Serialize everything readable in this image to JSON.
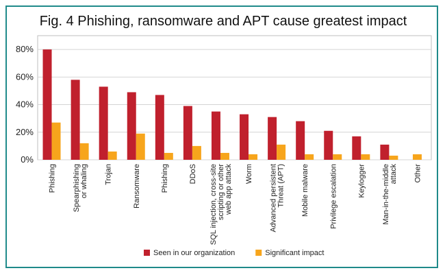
{
  "chart_data": {
    "type": "bar",
    "title": "Fig. 4  Phishing, ransomware and APT cause greatest impact",
    "xlabel": "",
    "ylabel": "",
    "ylim": [
      0,
      90
    ],
    "yticks": [
      0,
      20,
      40,
      60,
      80
    ],
    "ytick_labels": [
      "0%",
      "20%",
      "40%",
      "60%",
      "80%"
    ],
    "grid": true,
    "legend_position": "bottom",
    "categories": [
      [
        "Phishing"
      ],
      [
        "Spearphishing",
        "or whaling"
      ],
      [
        "Trojan"
      ],
      [
        "Ransomware"
      ],
      [
        "Phishing"
      ],
      [
        "DDoS"
      ],
      [
        "SQL injection, cross-site",
        "scripting or other",
        "web app attack"
      ],
      [
        "Worm"
      ],
      [
        "Advanced persistent",
        "Threat (APT)"
      ],
      [
        "Mobile malware"
      ],
      [
        "Privilege escalation"
      ],
      [
        "Keylogger"
      ],
      [
        "Man-in-the-middle",
        "attack"
      ],
      [
        "Other"
      ]
    ],
    "series": [
      {
        "name": "Seen in our organization",
        "color": "#c0202d",
        "values": [
          80,
          58,
          53,
          49,
          47,
          39,
          35,
          33,
          31,
          28,
          21,
          17,
          11,
          null
        ]
      },
      {
        "name": "Significant impact",
        "color": "#f7a51c",
        "values": [
          27,
          12,
          6,
          19,
          5,
          10,
          5,
          4,
          11,
          4,
          4,
          4,
          3,
          4
        ]
      }
    ]
  }
}
